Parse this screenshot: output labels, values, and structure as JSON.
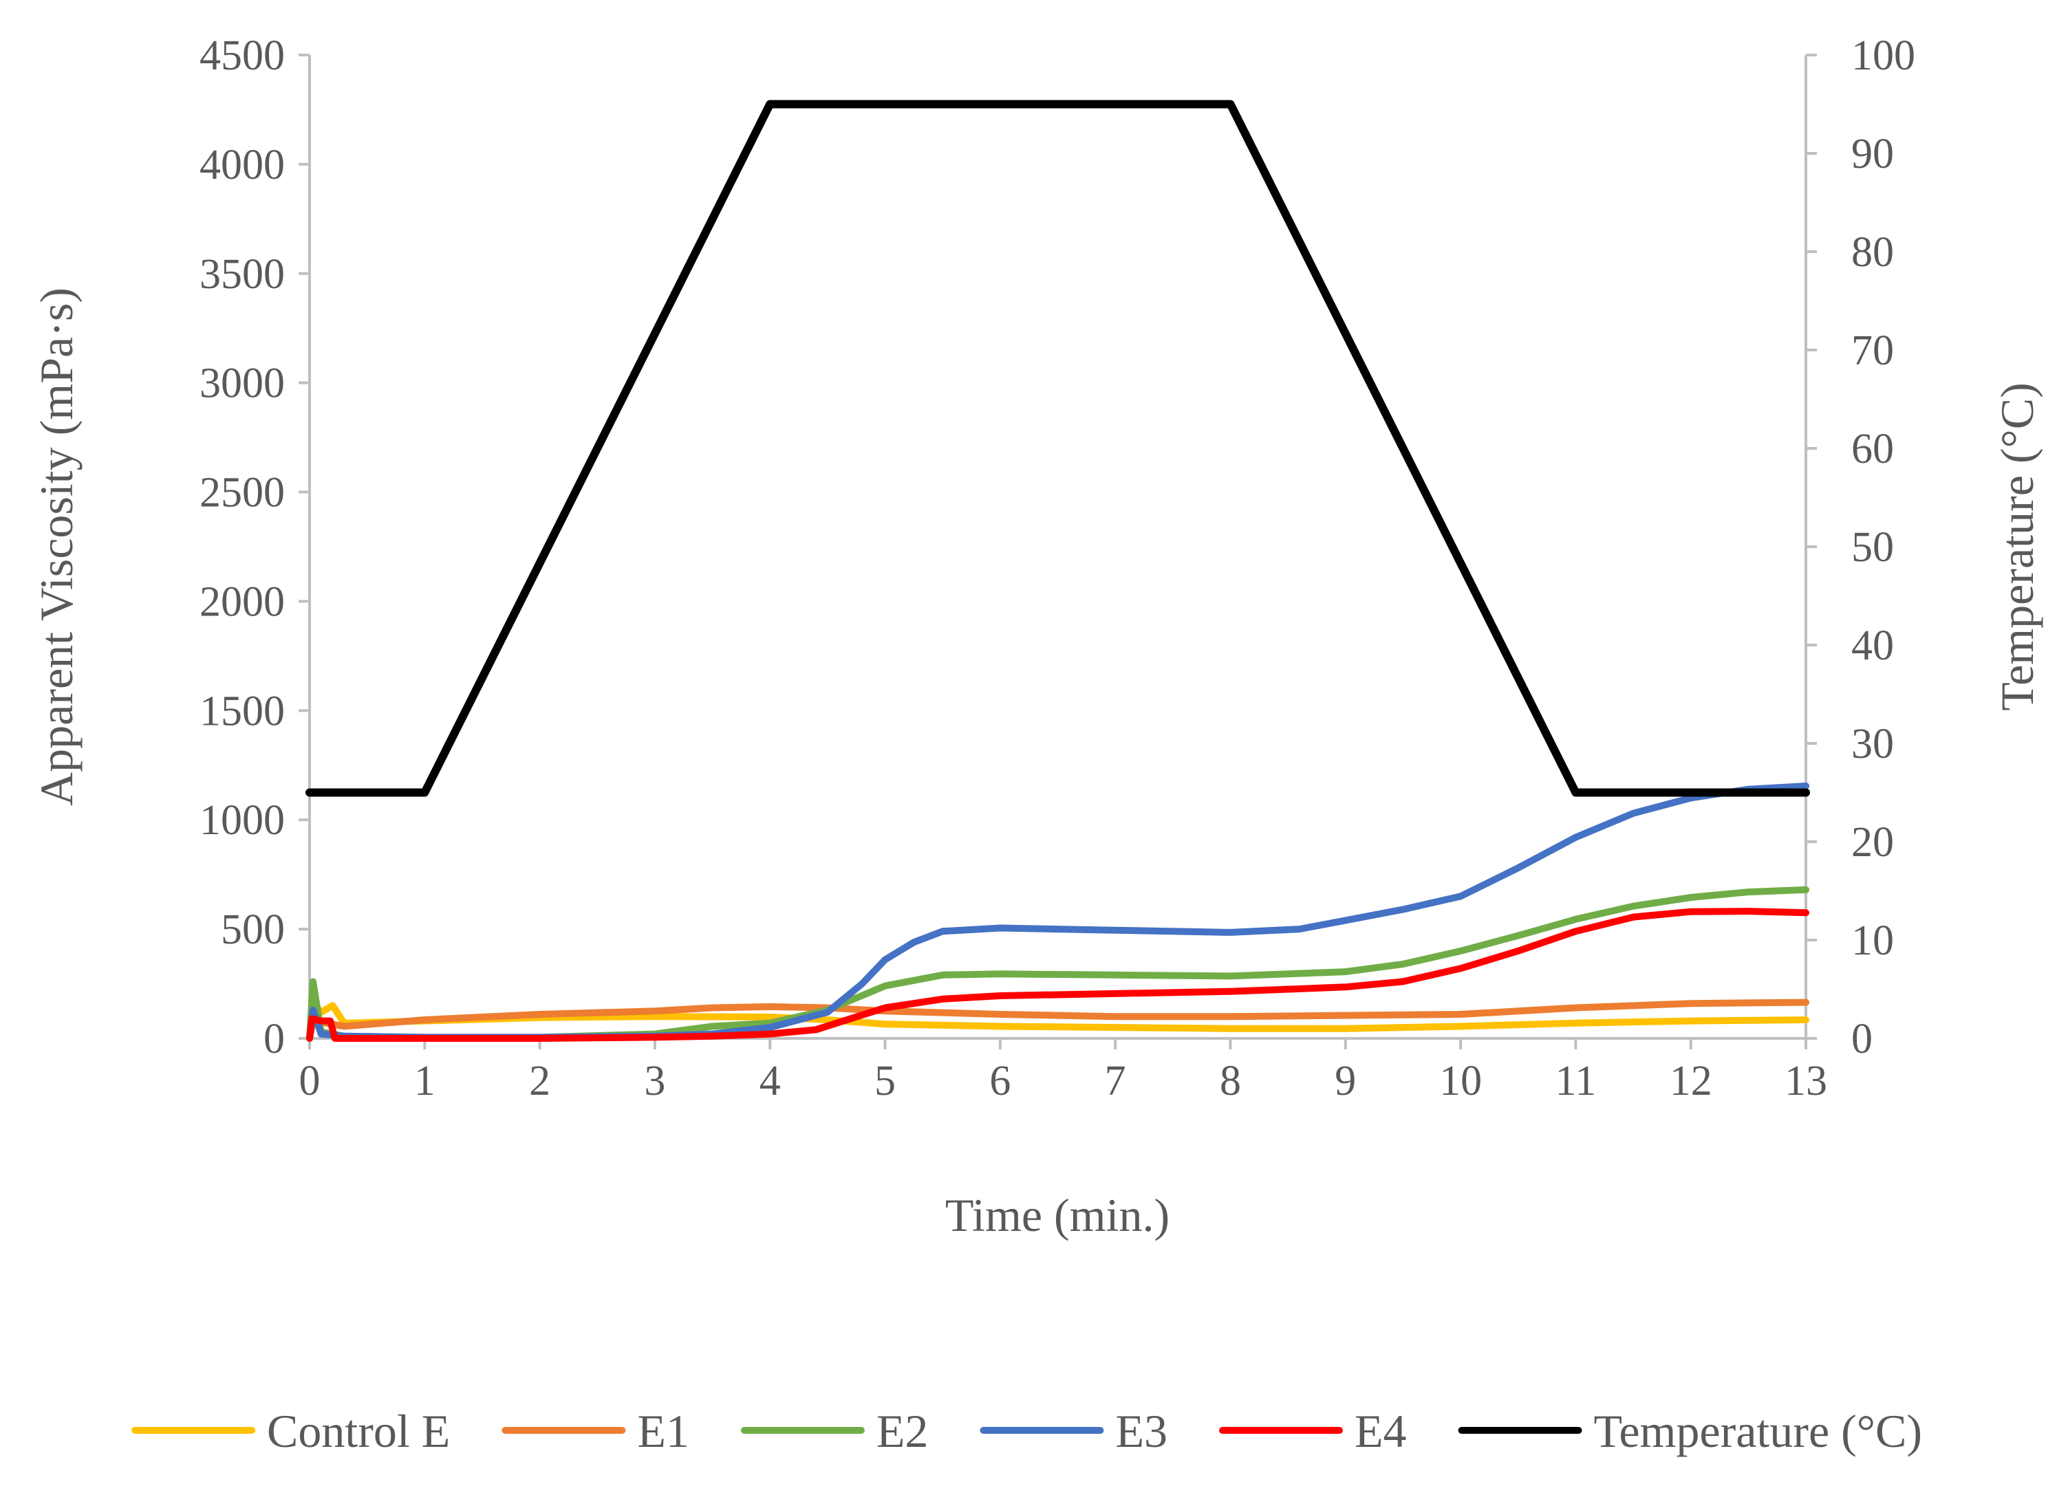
{
  "chart_data": {
    "type": "line",
    "title": "",
    "xlabel": "Time (min.)",
    "ylabel": "Apparent Viscosity (mPa·s)",
    "y2label": "Temperature (°C)",
    "xlim": [
      0,
      13
    ],
    "ylim": [
      0,
      4500
    ],
    "y2lim": [
      0,
      100
    ],
    "x_ticks": [
      "0",
      "1",
      "2",
      "3",
      "4",
      "5",
      "6",
      "7",
      "8",
      "9",
      "10",
      "11",
      "12",
      "13"
    ],
    "y_ticks": [
      "0",
      "500",
      "1000",
      "1500",
      "2000",
      "2500",
      "3000",
      "3500",
      "4000",
      "4500"
    ],
    "y2_ticks": [
      "0",
      "10",
      "20",
      "30",
      "40",
      "50",
      "60",
      "70",
      "80",
      "90",
      "100"
    ],
    "grid": false,
    "legend_position": "bottom",
    "series": [
      {
        "name": "Control E",
        "color": "#FFC000",
        "axis": "left",
        "points": [
          [
            0,
            0
          ],
          [
            0.03,
            160
          ],
          [
            0.1,
            120
          ],
          [
            0.2,
            150
          ],
          [
            0.3,
            70
          ],
          [
            1,
            80
          ],
          [
            2,
            95
          ],
          [
            3,
            100
          ],
          [
            4,
            98
          ],
          [
            4.5,
            85
          ],
          [
            5,
            65
          ],
          [
            6,
            55
          ],
          [
            7,
            50
          ],
          [
            8,
            45
          ],
          [
            9,
            45
          ],
          [
            10,
            55
          ],
          [
            11,
            70
          ],
          [
            12,
            80
          ],
          [
            13,
            85
          ]
        ]
      },
      {
        "name": "E1",
        "color": "#ED7D31",
        "axis": "left",
        "points": [
          [
            0,
            0
          ],
          [
            0.03,
            80
          ],
          [
            0.15,
            70
          ],
          [
            0.3,
            55
          ],
          [
            1,
            85
          ],
          [
            2,
            110
          ],
          [
            3,
            125
          ],
          [
            3.5,
            140
          ],
          [
            4,
            145
          ],
          [
            4.5,
            140
          ],
          [
            5,
            125
          ],
          [
            6,
            110
          ],
          [
            7,
            100
          ],
          [
            8,
            100
          ],
          [
            9,
            105
          ],
          [
            10,
            110
          ],
          [
            11,
            140
          ],
          [
            12,
            160
          ],
          [
            13,
            165
          ]
        ]
      },
      {
        "name": "E2",
        "color": "#70AD47",
        "axis": "left",
        "points": [
          [
            0,
            0
          ],
          [
            0.03,
            260
          ],
          [
            0.1,
            30
          ],
          [
            0.3,
            10
          ],
          [
            1,
            5
          ],
          [
            2,
            5
          ],
          [
            3,
            20
          ],
          [
            3.5,
            55
          ],
          [
            4,
            70
          ],
          [
            4.5,
            130
          ],
          [
            5,
            240
          ],
          [
            5.5,
            290
          ],
          [
            6,
            295
          ],
          [
            7,
            290
          ],
          [
            8,
            285
          ],
          [
            9,
            305
          ],
          [
            9.5,
            340
          ],
          [
            10,
            400
          ],
          [
            10.5,
            470
          ],
          [
            11,
            545
          ],
          [
            11.5,
            605
          ],
          [
            12,
            645
          ],
          [
            12.5,
            670
          ],
          [
            13,
            680
          ]
        ]
      },
      {
        "name": "E3",
        "color": "#4472C4",
        "axis": "left",
        "points": [
          [
            0,
            0
          ],
          [
            0.03,
            130
          ],
          [
            0.1,
            20
          ],
          [
            0.3,
            10
          ],
          [
            1,
            5
          ],
          [
            2,
            5
          ],
          [
            3,
            10
          ],
          [
            3.5,
            20
          ],
          [
            4,
            50
          ],
          [
            4.5,
            120
          ],
          [
            4.8,
            250
          ],
          [
            5,
            360
          ],
          [
            5.25,
            440
          ],
          [
            5.5,
            490
          ],
          [
            6,
            505
          ],
          [
            7,
            495
          ],
          [
            8,
            485
          ],
          [
            8.6,
            500
          ],
          [
            9,
            540
          ],
          [
            9.5,
            590
          ],
          [
            10,
            650
          ],
          [
            10.5,
            780
          ],
          [
            11,
            920
          ],
          [
            11.5,
            1030
          ],
          [
            12,
            1100
          ],
          [
            12.5,
            1140
          ],
          [
            13,
            1155
          ]
        ]
      },
      {
        "name": "E4",
        "color": "#FF0000",
        "axis": "left",
        "points": [
          [
            0,
            0
          ],
          [
            0.02,
            90
          ],
          [
            0.1,
            80
          ],
          [
            0.18,
            80
          ],
          [
            0.22,
            0
          ],
          [
            0.3,
            0
          ],
          [
            1,
            0
          ],
          [
            2,
            0
          ],
          [
            3,
            5
          ],
          [
            3.5,
            10
          ],
          [
            4,
            20
          ],
          [
            4.4,
            40
          ],
          [
            4.7,
            90
          ],
          [
            5,
            140
          ],
          [
            5.5,
            180
          ],
          [
            6,
            195
          ],
          [
            7,
            205
          ],
          [
            8,
            215
          ],
          [
            9,
            235
          ],
          [
            9.5,
            260
          ],
          [
            10,
            320
          ],
          [
            10.5,
            400
          ],
          [
            11,
            490
          ],
          [
            11.5,
            555
          ],
          [
            12,
            580
          ],
          [
            12.5,
            582
          ],
          [
            13,
            575
          ]
        ]
      },
      {
        "name": "Temperature (°C)",
        "color": "#000000",
        "axis": "right",
        "points": [
          [
            0,
            25
          ],
          [
            1,
            25
          ],
          [
            4,
            95
          ],
          [
            8,
            95
          ],
          [
            11,
            25
          ],
          [
            13,
            25
          ]
        ]
      }
    ]
  }
}
